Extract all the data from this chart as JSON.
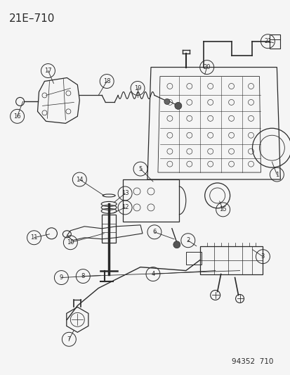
{
  "title": "21E–710",
  "footer": "94352  710",
  "bg_color": "#f5f5f5",
  "line_color": "#2a2a2a",
  "title_fontsize": 11,
  "footer_fontsize": 7.5,
  "figsize": [
    4.14,
    5.33
  ],
  "dpi": 100
}
